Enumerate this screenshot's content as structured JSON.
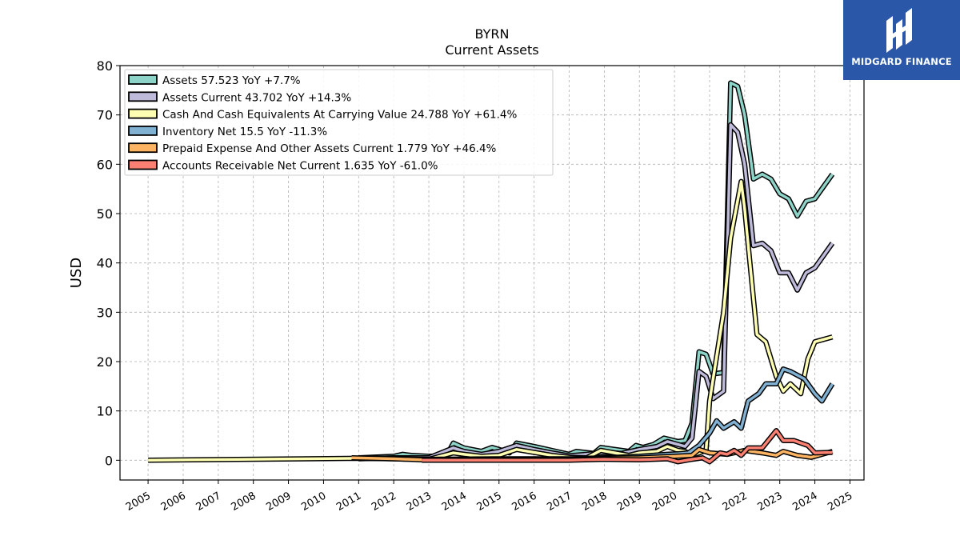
{
  "chart_data": {
    "type": "line",
    "title": "BYRN",
    "subtitle": "Current  Assets",
    "ylabel": "USD",
    "ylim": [
      -4,
      80
    ],
    "xlim": [
      2004.2,
      2025.4
    ],
    "yticks": [
      0,
      10,
      20,
      30,
      40,
      50,
      60,
      70,
      80
    ],
    "xticks": [
      "2005",
      "2006",
      "2007",
      "2008",
      "2009",
      "2010",
      "2011",
      "2012",
      "2013",
      "2014",
      "2015",
      "2016",
      "2017",
      "2018",
      "2019",
      "2020",
      "2021",
      "2022",
      "2023",
      "2024",
      "2025"
    ],
    "grid": true,
    "legend_position": "top-left",
    "series": [
      {
        "name": "Assets",
        "legend": "Assets  57.523 YoY +7.7%",
        "color": "#8dd3c7",
        "points": [
          [
            2011.0,
            0.5
          ],
          [
            2012.0,
            0.8
          ],
          [
            2012.25,
            1.2
          ],
          [
            2012.5,
            1.0
          ],
          [
            2013.0,
            0.8
          ],
          [
            2013.5,
            0.9
          ],
          [
            2013.7,
            3.5
          ],
          [
            2014.0,
            2.5
          ],
          [
            2014.5,
            1.8
          ],
          [
            2014.8,
            2.6
          ],
          [
            2015.0,
            2.2
          ],
          [
            2015.3,
            1.5
          ],
          [
            2015.5,
            3.5
          ],
          [
            2016.0,
            2.8
          ],
          [
            2016.5,
            2.0
          ],
          [
            2017.0,
            1.2
          ],
          [
            2017.2,
            1.8
          ],
          [
            2017.7,
            1.4
          ],
          [
            2017.9,
            2.6
          ],
          [
            2018.3,
            2.2
          ],
          [
            2018.7,
            1.8
          ],
          [
            2018.9,
            3.0
          ],
          [
            2019.1,
            2.6
          ],
          [
            2019.4,
            3.2
          ],
          [
            2019.7,
            4.5
          ],
          [
            2020.1,
            3.8
          ],
          [
            2020.3,
            4.0
          ],
          [
            2020.5,
            7.5
          ],
          [
            2020.7,
            22.0
          ],
          [
            2020.9,
            21.5
          ],
          [
            2021.1,
            17.5
          ],
          [
            2021.4,
            17.8
          ],
          [
            2021.6,
            76.5
          ],
          [
            2021.8,
            75.8
          ],
          [
            2022.0,
            70.0
          ],
          [
            2022.25,
            57.0
          ],
          [
            2022.5,
            58.0
          ],
          [
            2022.75,
            57.0
          ],
          [
            2023.0,
            54.0
          ],
          [
            2023.25,
            53.0
          ],
          [
            2023.5,
            49.5
          ],
          [
            2023.75,
            52.5
          ],
          [
            2024.0,
            53.0
          ],
          [
            2024.5,
            58.0
          ]
        ]
      },
      {
        "name": "Assets Current",
        "legend": "Assets Current  43.702 YoY +14.3%",
        "color": "#bebada",
        "points": [
          [
            2011.0,
            0.3
          ],
          [
            2012.0,
            0.5
          ],
          [
            2013.0,
            0.5
          ],
          [
            2013.7,
            2.5
          ],
          [
            2014.0,
            1.8
          ],
          [
            2014.5,
            1.2
          ],
          [
            2015.0,
            1.8
          ],
          [
            2015.5,
            3.0
          ],
          [
            2016.0,
            2.2
          ],
          [
            2016.5,
            1.5
          ],
          [
            2017.0,
            0.9
          ],
          [
            2017.5,
            1.2
          ],
          [
            2018.0,
            1.6
          ],
          [
            2018.5,
            1.4
          ],
          [
            2019.0,
            2.2
          ],
          [
            2019.5,
            2.8
          ],
          [
            2019.8,
            3.8
          ],
          [
            2020.1,
            3.2
          ],
          [
            2020.3,
            2.8
          ],
          [
            2020.5,
            4.5
          ],
          [
            2020.7,
            18.0
          ],
          [
            2020.9,
            17.0
          ],
          [
            2021.1,
            12.5
          ],
          [
            2021.4,
            14.0
          ],
          [
            2021.6,
            68.0
          ],
          [
            2021.8,
            66.5
          ],
          [
            2022.0,
            60.0
          ],
          [
            2022.25,
            43.5
          ],
          [
            2022.5,
            44.0
          ],
          [
            2022.75,
            42.5
          ],
          [
            2023.0,
            38.0
          ],
          [
            2023.25,
            38.0
          ],
          [
            2023.5,
            34.5
          ],
          [
            2023.75,
            38.0
          ],
          [
            2024.0,
            39.0
          ],
          [
            2024.5,
            44.0
          ]
        ]
      },
      {
        "name": "Cash And Cash Equivalents At Carrying Value",
        "legend": "Cash And Cash Equivalents At Carrying Value  24.788 YoY +61.4%",
        "color": "#ffffb3",
        "points": [
          [
            2005.0,
            0.0
          ],
          [
            2011.0,
            0.4
          ],
          [
            2012.0,
            0.3
          ],
          [
            2013.0,
            0.2
          ],
          [
            2013.7,
            1.5
          ],
          [
            2014.0,
            1.2
          ],
          [
            2014.5,
            0.8
          ],
          [
            2015.0,
            1.0
          ],
          [
            2015.5,
            2.2
          ],
          [
            2016.0,
            1.6
          ],
          [
            2016.5,
            1.0
          ],
          [
            2017.0,
            0.6
          ],
          [
            2017.5,
            0.5
          ],
          [
            2017.9,
            2.0
          ],
          [
            2018.3,
            1.5
          ],
          [
            2018.7,
            1.0
          ],
          [
            2019.0,
            1.5
          ],
          [
            2019.5,
            1.8
          ],
          [
            2019.8,
            2.8
          ],
          [
            2020.1,
            2.0
          ],
          [
            2020.3,
            1.8
          ],
          [
            2020.5,
            1.0
          ],
          [
            2020.9,
            2.0
          ],
          [
            2021.0,
            12.0
          ],
          [
            2021.4,
            30.0
          ],
          [
            2021.6,
            45.0
          ],
          [
            2021.9,
            56.5
          ],
          [
            2022.0,
            51.0
          ],
          [
            2022.35,
            25.5
          ],
          [
            2022.6,
            24.0
          ],
          [
            2022.9,
            17.0
          ],
          [
            2023.1,
            14.0
          ],
          [
            2023.3,
            15.5
          ],
          [
            2023.6,
            13.5
          ],
          [
            2023.8,
            20.5
          ],
          [
            2024.0,
            24.0
          ],
          [
            2024.5,
            25.0
          ]
        ]
      },
      {
        "name": "Inventory Net",
        "legend": "Inventory Net  15.5 YoY -11.3%",
        "color": "#80b1d3",
        "points": [
          [
            2013.0,
            0.2
          ],
          [
            2015.0,
            0.3
          ],
          [
            2017.0,
            0.3
          ],
          [
            2018.0,
            0.5
          ],
          [
            2019.0,
            0.8
          ],
          [
            2019.8,
            1.2
          ],
          [
            2020.1,
            1.3
          ],
          [
            2020.4,
            1.5
          ],
          [
            2020.7,
            3.0
          ],
          [
            2021.0,
            5.5
          ],
          [
            2021.2,
            8.0
          ],
          [
            2021.4,
            6.5
          ],
          [
            2021.7,
            7.8
          ],
          [
            2021.9,
            6.5
          ],
          [
            2022.1,
            12.0
          ],
          [
            2022.4,
            13.5
          ],
          [
            2022.6,
            15.5
          ],
          [
            2022.9,
            15.5
          ],
          [
            2023.1,
            18.5
          ],
          [
            2023.3,
            18.0
          ],
          [
            2023.7,
            16.5
          ],
          [
            2024.0,
            13.5
          ],
          [
            2024.2,
            12.0
          ],
          [
            2024.5,
            15.5
          ]
        ]
      },
      {
        "name": "Prepaid Expense And Other Assets Current",
        "legend": "Prepaid Expense And Other Assets Current  1.779 YoY +46.4%",
        "color": "#fdb462",
        "points": [
          [
            2010.8,
            0.5
          ],
          [
            2012.0,
            0.3
          ],
          [
            2012.8,
            0.1
          ],
          [
            2013.0,
            0.1
          ],
          [
            2015.0,
            0.2
          ],
          [
            2017.0,
            0.2
          ],
          [
            2018.0,
            0.4
          ],
          [
            2019.0,
            0.5
          ],
          [
            2020.0,
            0.8
          ],
          [
            2020.5,
            1.0
          ],
          [
            2020.7,
            2.2
          ],
          [
            2021.0,
            1.5
          ],
          [
            2021.5,
            1.2
          ],
          [
            2022.0,
            2.0
          ],
          [
            2022.5,
            1.5
          ],
          [
            2022.9,
            1.0
          ],
          [
            2023.1,
            1.8
          ],
          [
            2023.5,
            1.0
          ],
          [
            2023.9,
            0.6
          ],
          [
            2024.2,
            1.2
          ],
          [
            2024.5,
            1.8
          ]
        ]
      },
      {
        "name": "Accounts Receivable Net Current",
        "legend": "Accounts Receivable Net Current  1.635 YoY -61.0%",
        "color": "#fb8072",
        "points": [
          [
            2012.8,
            0.0
          ],
          [
            2015.0,
            0.0
          ],
          [
            2017.0,
            0.0
          ],
          [
            2018.0,
            0.2
          ],
          [
            2019.0,
            0.1
          ],
          [
            2019.8,
            0.3
          ],
          [
            2020.1,
            -0.3
          ],
          [
            2020.5,
            0.2
          ],
          [
            2020.8,
            0.5
          ],
          [
            2021.0,
            -0.3
          ],
          [
            2021.3,
            1.5
          ],
          [
            2021.5,
            1.2
          ],
          [
            2021.7,
            2.0
          ],
          [
            2021.9,
            1.0
          ],
          [
            2022.1,
            2.5
          ],
          [
            2022.5,
            2.5
          ],
          [
            2022.9,
            6.0
          ],
          [
            2023.1,
            4.0
          ],
          [
            2023.4,
            4.0
          ],
          [
            2023.8,
            3.0
          ],
          [
            2024.0,
            1.5
          ],
          [
            2024.5,
            1.6
          ]
        ]
      }
    ]
  },
  "brand": {
    "name": "MIDGARD FINANCE",
    "bg_color": "#2a57a8"
  }
}
